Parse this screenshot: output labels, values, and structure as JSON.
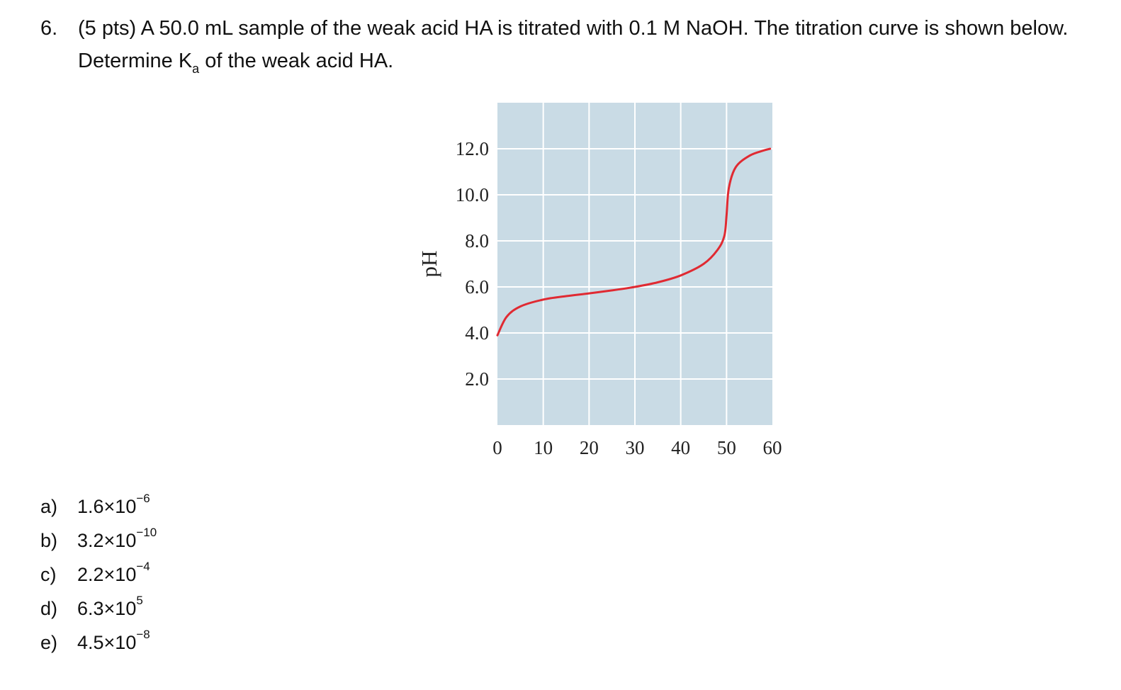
{
  "question": {
    "number": "6.",
    "line1": "(5 pts) A 50.0 mL sample of the weak acid HA is titrated with 0.1 M NaOH. The titration curve is shown below.",
    "line2_pre": "Determine K",
    "line2_sub": "a",
    "line2_post": " of the weak acid HA."
  },
  "chart_data": {
    "type": "line",
    "ylabel": "pH",
    "xlabel": "",
    "xlim": [
      0,
      60
    ],
    "ylim": [
      0,
      14
    ],
    "x_ticks": [
      "0",
      "10",
      "20",
      "30",
      "40",
      "50",
      "60"
    ],
    "y_ticks": [
      "2.0",
      "4.0",
      "6.0",
      "8.0",
      "10.0",
      "12.0"
    ],
    "grid": true,
    "background_color": "#c9dbe5",
    "line_color": "#e02a32",
    "series": [
      {
        "x": [
          0,
          2,
          5,
          10,
          15,
          20,
          25,
          30,
          35,
          40,
          45,
          48,
          49.5,
          50,
          50.5,
          52,
          55,
          58,
          59.5
        ],
        "y": [
          3.9,
          4.7,
          5.15,
          5.45,
          5.6,
          5.72,
          5.85,
          6.0,
          6.2,
          6.5,
          7.0,
          7.6,
          8.2,
          9.1,
          10.3,
          11.2,
          11.7,
          11.92,
          12.0
        ]
      }
    ]
  },
  "choices": [
    {
      "letter": "a)",
      "mantissa": "1.6×10",
      "exponent": "−6"
    },
    {
      "letter": "b)",
      "mantissa": "3.2×10",
      "exponent": "−10"
    },
    {
      "letter": "c)",
      "mantissa": "2.2×10",
      "exponent": "−4"
    },
    {
      "letter": "d)",
      "mantissa": "6.3×10",
      "exponent": "5"
    },
    {
      "letter": "e)",
      "mantissa": "4.5×10",
      "exponent": "−8"
    }
  ]
}
